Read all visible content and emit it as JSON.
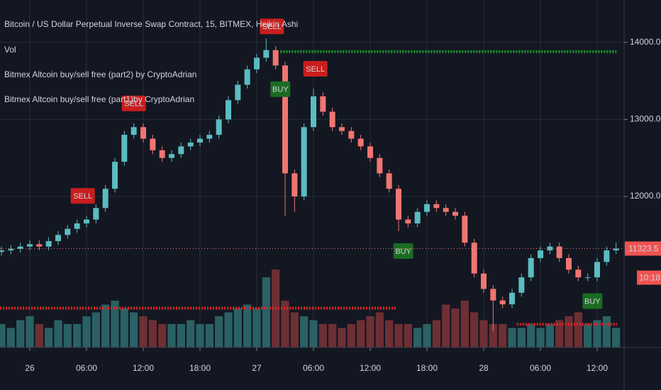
{
  "chart_data": {
    "type": "candlestick",
    "title": "Bitcoin / US Dollar Perpetual Inverse Swap Contract, 15, BITMEX, Heikin Ashi",
    "legend_items": [
      "Vol",
      "Bitmex Altcoin buy/sell free (part2) by CryptoAdrian",
      "Bitmex Altcoin buy/sell free (part1)by CryptoAdrian"
    ],
    "x": [
      -3,
      -2,
      -1,
      0,
      1,
      2,
      3,
      4,
      5,
      6,
      7,
      8,
      9,
      10,
      11,
      12,
      13,
      14,
      15,
      16,
      17,
      18,
      19,
      20,
      21,
      22,
      23,
      24,
      25,
      26,
      27,
      28,
      29,
      30,
      31,
      32,
      33,
      34,
      35,
      36,
      37,
      38,
      39,
      40,
      41,
      42,
      43,
      44,
      45,
      46,
      47,
      48,
      49,
      50,
      51,
      52,
      53,
      54,
      55,
      56,
      57,
      58,
      59,
      60,
      61,
      62
    ],
    "open": [
      11280,
      11300,
      11320,
      11350,
      11380,
      11350,
      11420,
      11500,
      11580,
      11650,
      11700,
      11850,
      12100,
      12450,
      12800,
      12900,
      12750,
      12600,
      12500,
      12550,
      12650,
      12700,
      12750,
      12800,
      13000,
      13250,
      13450,
      13650,
      13800,
      13900,
      13700,
      12300,
      12000,
      12900,
      13300,
      13100,
      12900,
      12850,
      12750,
      12650,
      12500,
      12300,
      12100,
      11700,
      11650,
      11800,
      11900,
      11850,
      11800,
      11750,
      11400,
      11000,
      10800,
      10650,
      10600,
      10750,
      10950,
      11200,
      11300,
      11350,
      11200,
      11050,
      10950,
      10950,
      11150,
      11300
    ],
    "high": [
      11350,
      11370,
      11400,
      11430,
      11430,
      11470,
      11550,
      11630,
      11700,
      11750,
      11900,
      12150,
      12500,
      12850,
      12950,
      12950,
      12800,
      12650,
      12600,
      12700,
      12750,
      12800,
      12850,
      13050,
      13300,
      13500,
      13700,
      13850,
      14050,
      13950,
      13750,
      12350,
      12950,
      13400,
      13350,
      13150,
      12950,
      12900,
      12800,
      12700,
      12550,
      12350,
      12150,
      11750,
      11850,
      11950,
      11950,
      11900,
      11850,
      11800,
      11450,
      11050,
      10850,
      10700,
      10800,
      11000,
      11250,
      11350,
      11400,
      11400,
      11250,
      11100,
      11000,
      11200,
      11350,
      11400
    ],
    "low": [
      11230,
      11250,
      11270,
      11300,
      11300,
      11300,
      11370,
      11450,
      11530,
      11600,
      11650,
      11800,
      12050,
      12400,
      12750,
      12700,
      12550,
      12450,
      12450,
      12500,
      12600,
      12650,
      12700,
      12750,
      12950,
      13200,
      13400,
      13600,
      13750,
      13650,
      11750,
      11800,
      11950,
      12850,
      13050,
      12850,
      12800,
      12700,
      12600,
      12450,
      12250,
      12050,
      11550,
      11600,
      11600,
      11750,
      11800,
      11750,
      11700,
      11350,
      10950,
      10750,
      10250,
      10550,
      10550,
      10700,
      10900,
      11150,
      11250,
      11150,
      11000,
      10900,
      10900,
      10900,
      11100,
      11250
    ],
    "close": [
      11300,
      11320,
      11350,
      11380,
      11350,
      11420,
      11500,
      11580,
      11650,
      11700,
      11850,
      12100,
      12450,
      12800,
      12900,
      12750,
      12600,
      12500,
      12550,
      12650,
      12700,
      12750,
      12800,
      13000,
      13250,
      13450,
      13650,
      13800,
      13900,
      13700,
      12300,
      12000,
      12900,
      13300,
      13100,
      12900,
      12850,
      12750,
      12650,
      12500,
      12300,
      12100,
      11700,
      11650,
      11800,
      11900,
      11850,
      11800,
      11750,
      11400,
      11000,
      10800,
      10650,
      10600,
      10750,
      10950,
      11200,
      11300,
      11350,
      11200,
      11050,
      10950,
      10950,
      11150,
      11300,
      11323.5
    ],
    "volume": [
      30,
      25,
      35,
      40,
      30,
      25,
      35,
      30,
      30,
      40,
      45,
      55,
      60,
      50,
      45,
      40,
      35,
      30,
      30,
      30,
      35,
      30,
      30,
      40,
      45,
      50,
      55,
      50,
      90,
      100,
      60,
      45,
      40,
      35,
      30,
      30,
      25,
      30,
      35,
      40,
      45,
      35,
      30,
      30,
      25,
      30,
      35,
      55,
      50,
      60,
      45,
      35,
      30,
      30,
      25,
      25,
      30,
      25,
      30,
      35,
      40,
      45,
      30,
      35,
      40,
      25
    ],
    "up_color": "#5bbcc0",
    "down_color": "#ef7672",
    "volume_up_color": "#2f6f70",
    "volume_down_color": "#7e3437",
    "xlim": [
      -3.15,
      62.85
    ],
    "ylim": [
      10040,
      14550
    ],
    "xticks": [
      {
        "value": 0,
        "label": "26"
      },
      {
        "value": 6,
        "label": "06:00"
      },
      {
        "value": 12,
        "label": "12:00"
      },
      {
        "value": 18,
        "label": "18:00"
      },
      {
        "value": 24,
        "label": "27"
      },
      {
        "value": 30,
        "label": "06:00"
      },
      {
        "value": 36,
        "label": "12:00"
      },
      {
        "value": 42,
        "label": "18:00"
      },
      {
        "value": 48,
        "label": "28"
      },
      {
        "value": 54,
        "label": "06:00"
      },
      {
        "value": 60,
        "label": "12:00"
      }
    ],
    "yticks": [
      {
        "value": 12000,
        "label": "12000.0"
      },
      {
        "value": 13000,
        "label": "13000.0"
      },
      {
        "value": 14000,
        "label": "14000.0"
      }
    ],
    "grid": true,
    "last_price": 11323.5,
    "countdown": "10:18",
    "signals": [
      {
        "x": 5.6,
        "label": "SELL",
        "kind": "sell"
      },
      {
        "x": 11,
        "label": "SELL",
        "kind": "sell"
      },
      {
        "x": 25.6,
        "label": "SELL",
        "kind": "sell"
      },
      {
        "x": 30.2,
        "label": "SELL",
        "kind": "sell"
      },
      {
        "x": 26.5,
        "label": "BUY",
        "kind": "buy"
      },
      {
        "x": 39.5,
        "label": "BUY",
        "kind": "buy"
      },
      {
        "x": 59.5,
        "label": "BUY",
        "kind": "buy"
      }
    ],
    "levels": [
      {
        "price": 13880,
        "from": 26.5,
        "to": 62.1,
        "color": "#1f9e2a"
      },
      {
        "price": 10550,
        "from": -3.15,
        "to": 38.8,
        "color": "#e02424"
      },
      {
        "price": 10340,
        "from": 51.5,
        "to": 62.1,
        "color": "#e02424"
      }
    ]
  }
}
